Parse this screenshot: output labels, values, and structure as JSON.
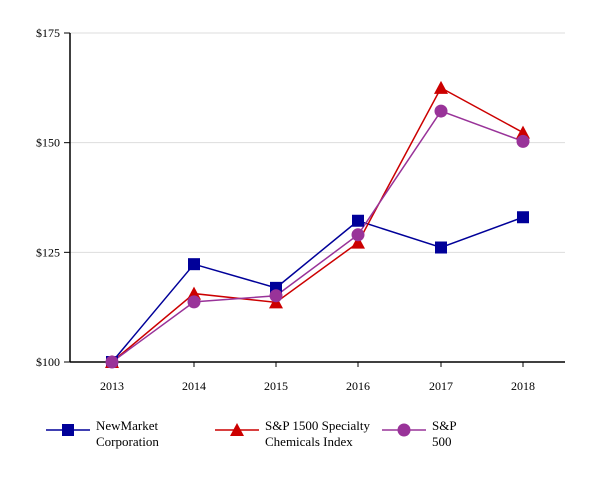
{
  "chart_data": {
    "type": "line",
    "categories": [
      "2013",
      "2014",
      "2015",
      "2016",
      "2017",
      "2018"
    ],
    "ylim": [
      100,
      175
    ],
    "yticks": [
      100,
      125,
      150,
      175
    ],
    "ytick_labels": [
      "$100",
      "$125",
      "$150",
      "$175"
    ],
    "grid": true,
    "legend_position": "bottom",
    "series": [
      {
        "name": "NewMarket\nCorporation",
        "color": "#000099",
        "marker": "square",
        "values": [
          100,
          122.3,
          116.9,
          132.2,
          126.1,
          133.0
        ]
      },
      {
        "name": "S&P 1500 Specialty\nChemicals Index",
        "color": "#cc0000",
        "marker": "triangle",
        "values": [
          100,
          115.6,
          113.6,
          127.2,
          162.5,
          152.3
        ]
      },
      {
        "name": "S&P\n500",
        "color": "#993399",
        "marker": "circle",
        "values": [
          100,
          113.7,
          115.1,
          129.0,
          157.2,
          150.3
        ]
      }
    ]
  }
}
